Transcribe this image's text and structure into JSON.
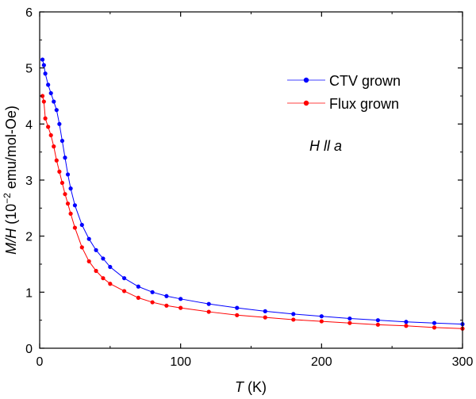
{
  "chart_data": {
    "type": "scatter",
    "xlabel_var": "T",
    "xlabel_unit": " (K)",
    "ylabel_var": "M/H",
    "ylabel_pre": " (10",
    "ylabel_exp": "−2",
    "ylabel_post": " emu/mol-Oe)",
    "xlim": [
      0,
      300
    ],
    "ylim": [
      0,
      6
    ],
    "xticks": [
      0,
      100,
      200,
      300
    ],
    "yticks": [
      0,
      1,
      2,
      3,
      4,
      5,
      6
    ],
    "grid": false,
    "legend_position": "top-right",
    "annotation": "H ll a",
    "series": [
      {
        "name": "CTV grown",
        "color": "#0000ff",
        "x": [
          2,
          3,
          4,
          6,
          8,
          10,
          12,
          14,
          16,
          18,
          20,
          22,
          25,
          30,
          35,
          40,
          45,
          50,
          60,
          70,
          80,
          90,
          100,
          120,
          140,
          160,
          180,
          200,
          220,
          240,
          260,
          280,
          300
        ],
        "y": [
          5.15,
          5.05,
          4.9,
          4.7,
          4.55,
          4.4,
          4.25,
          4.0,
          3.7,
          3.4,
          3.1,
          2.85,
          2.55,
          2.2,
          1.95,
          1.75,
          1.6,
          1.45,
          1.25,
          1.1,
          1.0,
          0.93,
          0.88,
          0.79,
          0.72,
          0.66,
          0.61,
          0.57,
          0.53,
          0.5,
          0.47,
          0.45,
          0.43
        ]
      },
      {
        "name": "Flux grown",
        "color": "#ff0000",
        "x": [
          2,
          3,
          4,
          6,
          8,
          10,
          12,
          14,
          16,
          18,
          20,
          22,
          25,
          30,
          35,
          40,
          45,
          50,
          60,
          70,
          80,
          90,
          100,
          120,
          140,
          160,
          180,
          200,
          220,
          240,
          260,
          280,
          300
        ],
        "y": [
          4.5,
          4.4,
          4.1,
          3.95,
          3.8,
          3.6,
          3.35,
          3.15,
          2.95,
          2.75,
          2.58,
          2.4,
          2.15,
          1.8,
          1.55,
          1.38,
          1.25,
          1.15,
          1.02,
          0.9,
          0.82,
          0.76,
          0.72,
          0.65,
          0.59,
          0.55,
          0.51,
          0.48,
          0.45,
          0.42,
          0.4,
          0.37,
          0.35
        ]
      }
    ]
  }
}
